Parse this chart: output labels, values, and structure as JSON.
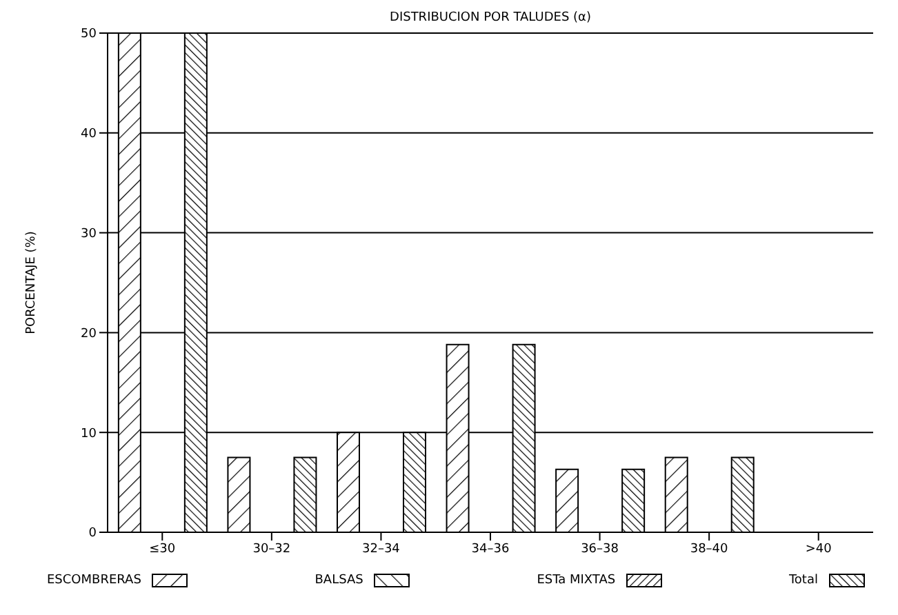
{
  "chart_data": {
    "type": "bar",
    "title": "DISTRIBUCION POR TALUDES (α)",
    "ylabel": "PORCENTAJE (%)",
    "categories": [
      "≤30",
      "30–32",
      "32–34",
      "34–36",
      "36–38",
      "38–40",
      ">40"
    ],
    "series": [
      {
        "name": "ESCOMBRERAS",
        "color": "#000000",
        "values": [
          50,
          7.5,
          10,
          18.8,
          6.3,
          7.5,
          0
        ]
      },
      {
        "name": "BALSAS",
        "color": "#000000",
        "values": [
          0,
          0,
          0,
          0,
          0,
          0,
          0
        ]
      },
      {
        "name": "ESTa MIXTAS",
        "color": "#000000",
        "values": [
          0,
          0,
          0,
          0,
          0,
          0,
          0
        ]
      },
      {
        "name": "Total",
        "color": "#000000",
        "values": [
          50,
          7.5,
          10,
          18.8,
          6.3,
          7.5,
          0
        ]
      }
    ],
    "ylim": [
      0,
      50
    ],
    "yticks": [
      0,
      10,
      20,
      30,
      40,
      50
    ],
    "grid": "y",
    "legend": "bottom"
  }
}
